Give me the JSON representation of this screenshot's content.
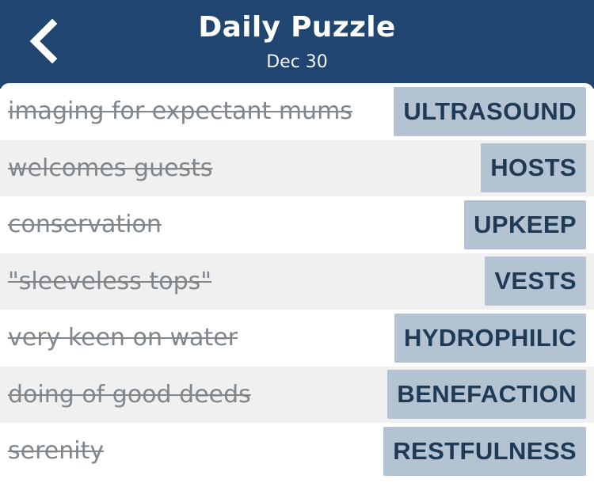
{
  "header": {
    "title": "Daily Puzzle",
    "date": "Dec 30",
    "back_icon": "chevron-left-icon",
    "background_color": "#204570"
  },
  "rows": [
    {
      "clue": "imaging for expectant mums",
      "answer": "ULTRASOUND"
    },
    {
      "clue": "welcomes guests",
      "answer": "HOSTS"
    },
    {
      "clue": "conservation",
      "answer": "UPKEEP"
    },
    {
      "clue": "\"sleeveless tops\"",
      "answer": "VESTS"
    },
    {
      "clue": "very keen on water",
      "answer": "HYDROPHILIC"
    },
    {
      "clue": "doing of good deeds",
      "answer": "BENEFACTION"
    },
    {
      "clue": "serenity",
      "answer": "RESTFULNESS"
    }
  ],
  "colors": {
    "answer_bg": "#b3c3d1",
    "answer_text": "#1e3a55",
    "clue_text": "#7f868c",
    "row_alt": "#f0f0f0"
  }
}
